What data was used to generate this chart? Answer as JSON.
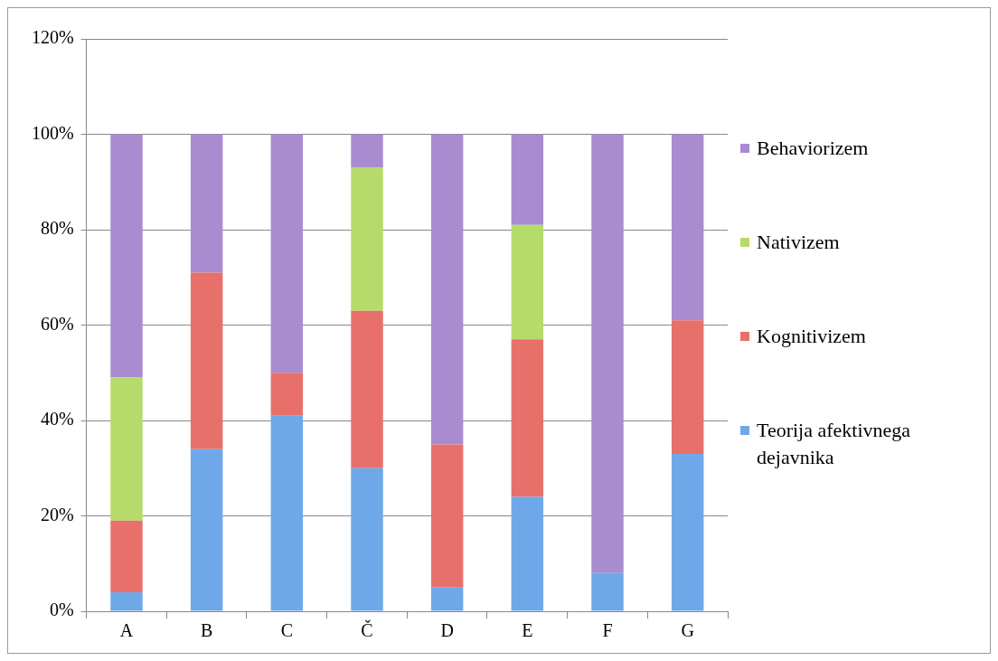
{
  "chart_data": {
    "type": "bar",
    "stacked": true,
    "categories": [
      "A",
      "B",
      "C",
      "Č",
      "D",
      "E",
      "F",
      "G"
    ],
    "series": [
      {
        "name": "Teorija afektivnega dejavnika",
        "color": "#6fa8e8",
        "values": [
          4,
          34,
          41,
          30,
          5,
          24,
          8,
          33
        ]
      },
      {
        "name": "Kognitivizem",
        "color": "#e8706a",
        "values": [
          15,
          37,
          9,
          33,
          30,
          33,
          0,
          28
        ]
      },
      {
        "name": "Nativizem",
        "color": "#b5dc6a",
        "values": [
          30,
          0,
          0,
          30,
          0,
          24,
          0,
          0
        ]
      },
      {
        "name": "Behaviorizem",
        "color": "#a98bd0",
        "values": [
          51,
          29,
          50,
          7,
          65,
          19,
          92,
          39
        ]
      }
    ],
    "ylim": [
      0,
      120
    ],
    "yticks": [
      {
        "value": 0,
        "label": "0%"
      },
      {
        "value": 20,
        "label": "20%"
      },
      {
        "value": 40,
        "label": "40%"
      },
      {
        "value": 60,
        "label": "60%"
      },
      {
        "value": 80,
        "label": "80%"
      },
      {
        "value": 100,
        "label": "100%"
      },
      {
        "value": 120,
        "label": "120%"
      }
    ],
    "grid": "y",
    "legend": "right"
  }
}
